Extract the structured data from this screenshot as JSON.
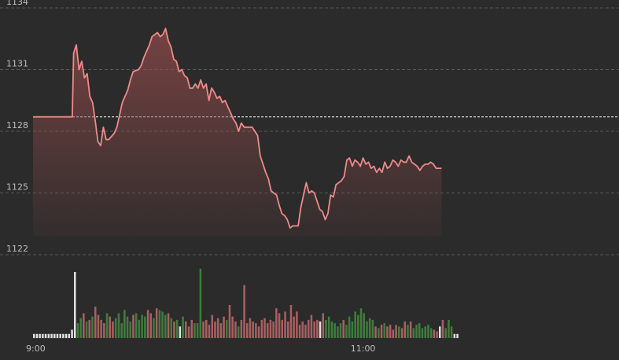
{
  "chart_data": {
    "type": "line",
    "theme": {
      "background": "#2b2b2b",
      "line_color": "#f08a8a",
      "grid_color": "#5a5a5a",
      "ref_line_color": "#e8e8e8",
      "vol_up": "#3f7d3f",
      "vol_down": "#a86060",
      "vol_flat": "#e0e0e0",
      "axis_text": "#bdbdbd"
    },
    "y_axis": {
      "ticks": [
        "1134",
        "1131",
        "1128",
        "1125",
        "1122"
      ],
      "range": [
        1122,
        1134
      ]
    },
    "x_axis": {
      "ticks": [
        {
          "label": "9:00",
          "minute": 0
        },
        {
          "label": "11:00",
          "minute": 120
        }
      ],
      "minutes_total": 157
    },
    "reference_price": 1128.7,
    "grid": true,
    "price": [
      [
        0,
        1128.7
      ],
      [
        14.5,
        1128.7
      ],
      [
        15,
        1131.8
      ],
      [
        16,
        1132.2
      ],
      [
        17,
        1131
      ],
      [
        18,
        1131.4
      ],
      [
        19,
        1130.6
      ],
      [
        20,
        1130.8
      ],
      [
        21,
        1129.7
      ],
      [
        22,
        1129.4
      ],
      [
        23,
        1128.5
      ],
      [
        24,
        1127.5
      ],
      [
        25,
        1127.3
      ],
      [
        26,
        1128.2
      ],
      [
        27,
        1127.6
      ],
      [
        28,
        1127.6
      ],
      [
        30,
        1127.9
      ],
      [
        31,
        1128.2
      ],
      [
        32,
        1128.8
      ],
      [
        33,
        1129.4
      ],
      [
        35,
        1130
      ],
      [
        36,
        1130.5
      ],
      [
        37,
        1130.9
      ],
      [
        39,
        1131
      ],
      [
        40,
        1131.2
      ],
      [
        41,
        1131.6
      ],
      [
        43,
        1132.2
      ],
      [
        44,
        1132.6
      ],
      [
        46,
        1132.8
      ],
      [
        47,
        1132.6
      ],
      [
        48,
        1132.7
      ],
      [
        49,
        1133
      ],
      [
        50,
        1132.4
      ],
      [
        51,
        1132.1
      ],
      [
        52,
        1131.5
      ],
      [
        53,
        1131.4
      ],
      [
        54,
        1130.9
      ],
      [
        55,
        1131
      ],
      [
        56,
        1130.7
      ],
      [
        57,
        1130.6
      ],
      [
        58,
        1130.1
      ],
      [
        59,
        1130.1
      ],
      [
        60,
        1130.3
      ],
      [
        61,
        1130.1
      ],
      [
        62,
        1130.5
      ],
      [
        63,
        1130.1
      ],
      [
        64,
        1130.3
      ],
      [
        65,
        1129.5
      ],
      [
        66,
        1130.1
      ],
      [
        67,
        1129.9
      ],
      [
        68,
        1129.6
      ],
      [
        69,
        1129.7
      ],
      [
        70,
        1129.4
      ],
      [
        71,
        1129.5
      ],
      [
        72,
        1129.2
      ],
      [
        73,
        1128.9
      ],
      [
        74,
        1128.6
      ],
      [
        75,
        1128.4
      ],
      [
        76,
        1128
      ],
      [
        77,
        1128.4
      ],
      [
        78,
        1128.2
      ],
      [
        79,
        1128.2
      ],
      [
        80,
        1128.2
      ],
      [
        81,
        1128.2
      ],
      [
        82,
        1128
      ],
      [
        83,
        1127.8
      ],
      [
        84,
        1126.8
      ],
      [
        85,
        1126.4
      ],
      [
        86,
        1126
      ],
      [
        87,
        1125.7
      ],
      [
        88,
        1125.1
      ],
      [
        89,
        1125
      ],
      [
        90,
        1124.9
      ],
      [
        91,
        1124.4
      ],
      [
        92,
        1124
      ],
      [
        93,
        1123.9
      ],
      [
        94,
        1123.7
      ],
      [
        95,
        1123.3
      ],
      [
        96,
        1123.4
      ],
      [
        97,
        1123.4
      ],
      [
        98,
        1123.4
      ],
      [
        99,
        1124.3
      ],
      [
        100,
        1124.9
      ],
      [
        101,
        1125.5
      ],
      [
        102,
        1125
      ],
      [
        103,
        1125.1
      ],
      [
        104,
        1125
      ],
      [
        105,
        1124.6
      ],
      [
        106,
        1124.2
      ],
      [
        107,
        1124.1
      ],
      [
        108,
        1123.7
      ],
      [
        109,
        1124
      ],
      [
        110,
        1124.9
      ],
      [
        111,
        1124.8
      ],
      [
        112,
        1125.4
      ],
      [
        113,
        1125.5
      ],
      [
        114,
        1125.6
      ],
      [
        115,
        1125.8
      ],
      [
        116,
        1126.6
      ],
      [
        117,
        1126.7
      ],
      [
        118,
        1126.3
      ],
      [
        119,
        1126.6
      ],
      [
        120,
        1126.5
      ],
      [
        121,
        1126.3
      ],
      [
        122,
        1126.7
      ],
      [
        123,
        1126.4
      ],
      [
        124,
        1126.5
      ],
      [
        125,
        1126.2
      ],
      [
        126,
        1126.3
      ],
      [
        127,
        1126
      ],
      [
        128,
        1126.2
      ],
      [
        129,
        1126
      ],
      [
        130,
        1126.5
      ],
      [
        131,
        1126.2
      ],
      [
        132,
        1126.3
      ],
      [
        133,
        1126.6
      ],
      [
        134,
        1126.5
      ],
      [
        135,
        1126.3
      ],
      [
        136,
        1126.6
      ],
      [
        137,
        1126.5
      ],
      [
        138,
        1126.5
      ],
      [
        139,
        1126.8
      ],
      [
        140,
        1126.5
      ],
      [
        141,
        1126.4
      ],
      [
        142,
        1126.3
      ],
      [
        143,
        1126.1
      ],
      [
        144,
        1126.3
      ],
      [
        145,
        1126.4
      ],
      [
        146,
        1126.4
      ],
      [
        147,
        1126.5
      ],
      [
        148,
        1126.4
      ],
      [
        149,
        1126.2
      ],
      [
        150,
        1126.2
      ],
      [
        151,
        1126.2
      ]
    ],
    "volume_max": 80,
    "volume": [
      [
        0,
        5,
        "flat"
      ],
      [
        1,
        5,
        "flat"
      ],
      [
        2,
        5,
        "flat"
      ],
      [
        3,
        5,
        "flat"
      ],
      [
        4,
        5,
        "flat"
      ],
      [
        5,
        5,
        "flat"
      ],
      [
        6,
        5,
        "flat"
      ],
      [
        7,
        5,
        "flat"
      ],
      [
        8,
        5,
        "flat"
      ],
      [
        9,
        5,
        "flat"
      ],
      [
        10,
        5,
        "flat"
      ],
      [
        11,
        5,
        "flat"
      ],
      [
        12,
        5,
        "flat"
      ],
      [
        13,
        10,
        "flat"
      ],
      [
        14,
        80,
        "flat"
      ],
      [
        15,
        18,
        "up"
      ],
      [
        16,
        24,
        "up"
      ],
      [
        17,
        30,
        "down"
      ],
      [
        18,
        20,
        "up"
      ],
      [
        19,
        22,
        "down"
      ],
      [
        20,
        26,
        "up"
      ],
      [
        21,
        38,
        "down"
      ],
      [
        22,
        28,
        "down"
      ],
      [
        23,
        22,
        "down"
      ],
      [
        24,
        18,
        "down"
      ],
      [
        25,
        30,
        "up"
      ],
      [
        26,
        26,
        "down"
      ],
      [
        27,
        20,
        "down"
      ],
      [
        28,
        24,
        "up"
      ],
      [
        29,
        30,
        "up"
      ],
      [
        30,
        18,
        "up"
      ],
      [
        31,
        34,
        "up"
      ],
      [
        32,
        26,
        "up"
      ],
      [
        33,
        20,
        "up"
      ],
      [
        34,
        28,
        "down"
      ],
      [
        35,
        30,
        "up"
      ],
      [
        36,
        22,
        "up"
      ],
      [
        37,
        28,
        "up"
      ],
      [
        38,
        26,
        "up"
      ],
      [
        39,
        34,
        "down"
      ],
      [
        40,
        30,
        "down"
      ],
      [
        41,
        24,
        "up"
      ],
      [
        42,
        36,
        "down"
      ],
      [
        43,
        34,
        "up"
      ],
      [
        44,
        32,
        "up"
      ],
      [
        45,
        28,
        "up"
      ],
      [
        46,
        30,
        "down"
      ],
      [
        47,
        24,
        "up"
      ],
      [
        48,
        20,
        "down"
      ],
      [
        49,
        22,
        "up"
      ],
      [
        50,
        14,
        "flat"
      ],
      [
        51,
        26,
        "up"
      ],
      [
        52,
        20,
        "down"
      ],
      [
        53,
        14,
        "down"
      ],
      [
        54,
        22,
        "down"
      ],
      [
        55,
        18,
        "up"
      ],
      [
        56,
        18,
        "up"
      ],
      [
        57,
        84,
        "up"
      ],
      [
        58,
        20,
        "down"
      ],
      [
        59,
        22,
        "down"
      ],
      [
        60,
        16,
        "down"
      ],
      [
        61,
        28,
        "down"
      ],
      [
        62,
        20,
        "down"
      ],
      [
        63,
        24,
        "down"
      ],
      [
        64,
        18,
        "down"
      ],
      [
        65,
        26,
        "down"
      ],
      [
        66,
        22,
        "up"
      ],
      [
        67,
        40,
        "down"
      ],
      [
        68,
        26,
        "down"
      ],
      [
        69,
        20,
        "down"
      ],
      [
        70,
        14,
        "up"
      ],
      [
        71,
        22,
        "down"
      ],
      [
        72,
        64,
        "down"
      ],
      [
        73,
        18,
        "down"
      ],
      [
        74,
        24,
        "down"
      ],
      [
        75,
        20,
        "down"
      ],
      [
        76,
        18,
        "down"
      ],
      [
        77,
        14,
        "down"
      ],
      [
        78,
        22,
        "down"
      ],
      [
        79,
        24,
        "down"
      ],
      [
        80,
        18,
        "down"
      ],
      [
        81,
        22,
        "down"
      ],
      [
        82,
        20,
        "down"
      ],
      [
        83,
        36,
        "down"
      ],
      [
        84,
        30,
        "down"
      ],
      [
        85,
        22,
        "down"
      ],
      [
        86,
        32,
        "down"
      ],
      [
        87,
        20,
        "down"
      ],
      [
        88,
        40,
        "down"
      ],
      [
        89,
        26,
        "down"
      ],
      [
        90,
        32,
        "down"
      ],
      [
        91,
        16,
        "down"
      ],
      [
        92,
        20,
        "down"
      ],
      [
        93,
        16,
        "down"
      ],
      [
        94,
        22,
        "down"
      ],
      [
        95,
        28,
        "down"
      ],
      [
        96,
        20,
        "down"
      ],
      [
        97,
        22,
        "down"
      ],
      [
        98,
        20,
        "flat"
      ],
      [
        99,
        30,
        "down"
      ],
      [
        100,
        22,
        "up"
      ],
      [
        101,
        26,
        "up"
      ],
      [
        102,
        20,
        "up"
      ],
      [
        103,
        18,
        "up"
      ],
      [
        104,
        14,
        "up"
      ],
      [
        105,
        18,
        "up"
      ],
      [
        106,
        22,
        "down"
      ],
      [
        107,
        16,
        "up"
      ],
      [
        108,
        26,
        "up"
      ],
      [
        109,
        20,
        "up"
      ],
      [
        110,
        32,
        "up"
      ],
      [
        111,
        28,
        "up"
      ],
      [
        112,
        36,
        "up"
      ],
      [
        113,
        30,
        "up"
      ],
      [
        114,
        20,
        "up"
      ],
      [
        115,
        24,
        "up"
      ],
      [
        116,
        22,
        "up"
      ],
      [
        117,
        14,
        "down"
      ],
      [
        118,
        12,
        "up"
      ],
      [
        119,
        16,
        "down"
      ],
      [
        120,
        18,
        "up"
      ],
      [
        121,
        14,
        "down"
      ],
      [
        122,
        16,
        "down"
      ],
      [
        123,
        10,
        "down"
      ],
      [
        124,
        16,
        "down"
      ],
      [
        125,
        14,
        "up"
      ],
      [
        126,
        12,
        "down"
      ],
      [
        127,
        20,
        "down"
      ],
      [
        128,
        16,
        "up"
      ],
      [
        129,
        20,
        "down"
      ],
      [
        130,
        12,
        "up"
      ],
      [
        131,
        16,
        "up"
      ],
      [
        132,
        18,
        "up"
      ],
      [
        133,
        12,
        "up"
      ],
      [
        134,
        14,
        "up"
      ],
      [
        135,
        16,
        "up"
      ],
      [
        136,
        12,
        "up"
      ],
      [
        137,
        10,
        "down"
      ],
      [
        138,
        8,
        "down"
      ],
      [
        139,
        14,
        "flat"
      ],
      [
        140,
        22,
        "down"
      ],
      [
        141,
        12,
        "up"
      ],
      [
        142,
        22,
        "up"
      ],
      [
        143,
        14,
        "up"
      ],
      [
        144,
        5,
        "flat"
      ],
      [
        145,
        5,
        "flat"
      ]
    ]
  }
}
